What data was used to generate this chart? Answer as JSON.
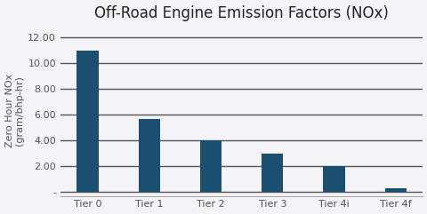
{
  "title": "Off-Road Engine Emission Factors (NOx)",
  "categories": [
    "Tier 0",
    "Tier 1",
    "Tier 2",
    "Tier 3",
    "Tier 4i",
    "Tier 4f"
  ],
  "values": [
    11.0,
    5.7,
    4.0,
    3.0,
    2.0,
    0.3
  ],
  "bar_color": "#1b4f72",
  "ylabel_line1": "Zero Hour NOx",
  "ylabel_line2": "(gram/bhp-hr)",
  "ylim": [
    -0.3,
    13.0
  ],
  "yticks": [
    0,
    2.0,
    4.0,
    6.0,
    8.0,
    10.0,
    12.0
  ],
  "ytick_labels": [
    "-",
    "2.00",
    "4.00",
    "6.00",
    "8.00",
    "10.00",
    "12.00"
  ],
  "background_color": "#f4f4f6",
  "plot_bg_color": "#f4f4f6",
  "title_fontsize": 12,
  "axis_fontsize": 8,
  "tick_fontsize": 8,
  "bar_width": 0.35,
  "grid_color": "#555555",
  "grid_linewidth": 1.0,
  "spine_color": "#aaaaaa"
}
